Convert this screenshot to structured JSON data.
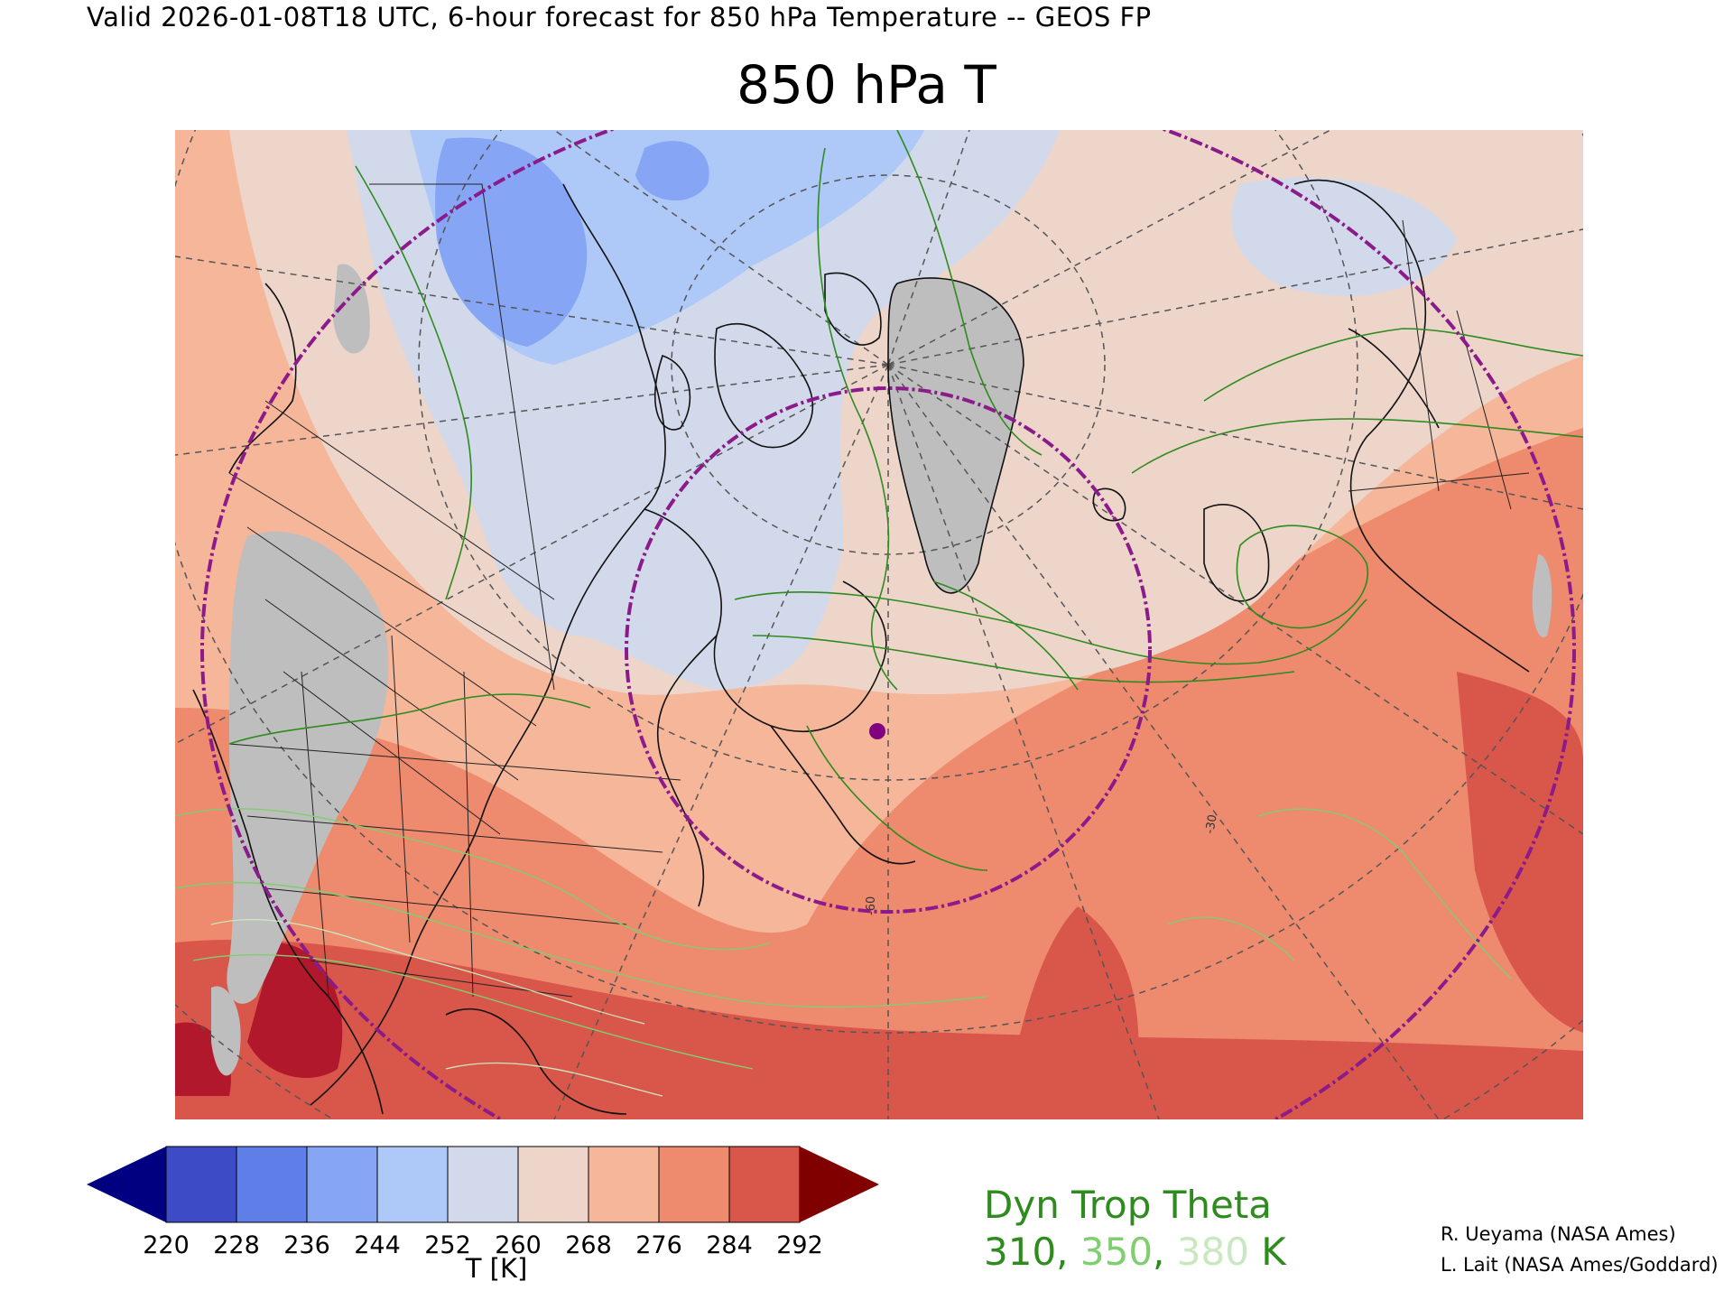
{
  "header": {
    "valid_line": "Valid 2026-01-08T18 UTC, 6-hour forecast for 850 hPa Temperature -- GEOS FP",
    "title": "850 hPa T"
  },
  "map": {
    "region": "North America, North Atlantic, Greenland, Arctic and Europe",
    "field": "850 hPa Temperature",
    "contours": "Dynamic tropopause theta",
    "grid_labels": [
      "-60",
      "-30"
    ],
    "marker_color": "#800080",
    "circle_color": "#8b1a8b"
  },
  "colorbar": {
    "label": "T [K]",
    "ticks": [
      "220",
      "228",
      "236",
      "244",
      "252",
      "260",
      "268",
      "276",
      "284",
      "292"
    ],
    "below_color": "#000080",
    "above_color": "#800000",
    "colors": [
      "#3d4bc7",
      "#5f7ee8",
      "#86a6f5",
      "#aec8f8",
      "#d1d9ea",
      "#edd5ca",
      "#f5b69a",
      "#ee8a6e",
      "#d9574a"
    ]
  },
  "contour_legend": {
    "title": "Dyn Trop Theta",
    "values": [
      {
        "text": "310",
        "color": "#2e8b1e"
      },
      {
        "text": "350",
        "color": "#7fcf6e"
      },
      {
        "text": "380",
        "color": "#c8e9c0"
      }
    ],
    "sep": ", ",
    "unit": " K",
    "title_color": "#2e8b1e",
    "unit_color": "#2e8b1e"
  },
  "credits": {
    "line1": "R. Ueyama (NASA Ames)",
    "line2": "L. Lait (NASA Ames/Goddard)"
  }
}
